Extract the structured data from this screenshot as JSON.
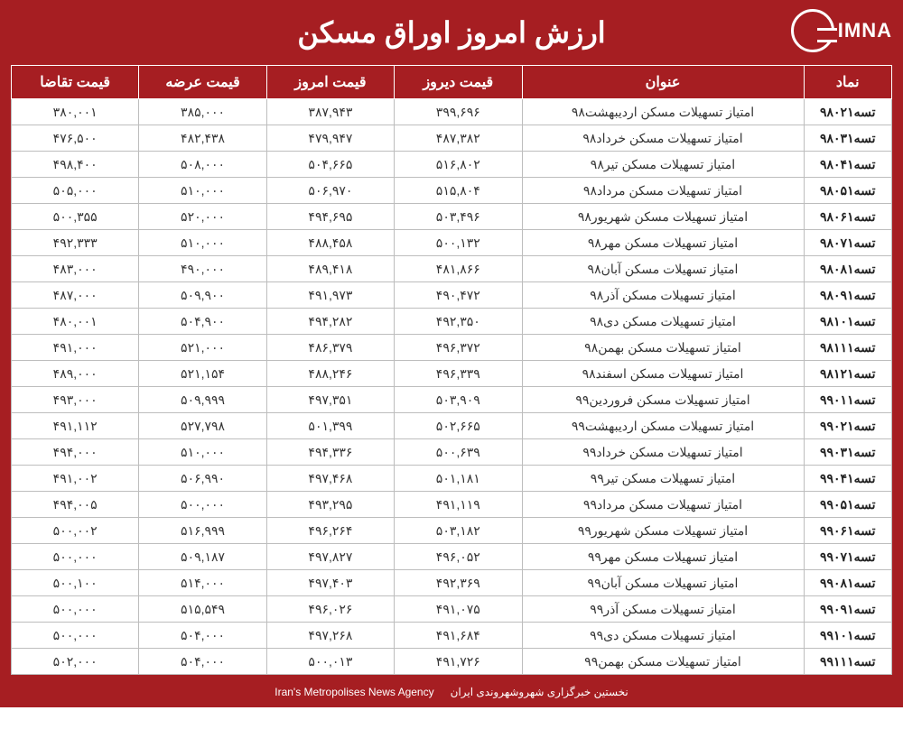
{
  "brand": {
    "name": "IMNA"
  },
  "title": "ارزش امروز اوراق مسکن",
  "footer": {
    "fa": "نخستین خبرگزاری شهروشهروندی ایران",
    "en": "Iran's Metropolises News Agency"
  },
  "table": {
    "type": "table",
    "background_color": "#ffffff",
    "header_bg": "#a61e22",
    "header_fg": "#ffffff",
    "border_color": "#bdbdbd",
    "font_family": "Tahoma",
    "header_fontsize": 16,
    "body_fontsize": 14,
    "columns": [
      {
        "key": "symbol",
        "label": "نماد",
        "width_pct": 10,
        "align": "center",
        "bold": true
      },
      {
        "key": "title",
        "label": "عنوان",
        "width_pct": 32,
        "align": "center"
      },
      {
        "key": "yesterday",
        "label": "قیمت دیروز",
        "width_pct": 14.5,
        "align": "center"
      },
      {
        "key": "today",
        "label": "قیمت امروز",
        "width_pct": 14.5,
        "align": "center"
      },
      {
        "key": "offer",
        "label": "قیمت عرضه",
        "width_pct": 14.5,
        "align": "center"
      },
      {
        "key": "demand",
        "label": "قیمت تقاضا",
        "width_pct": 14.5,
        "align": "center"
      }
    ],
    "rows": [
      {
        "symbol": "تسه۹۸۰۲۱",
        "title": "امتیاز تسهیلات مسکن اردیبهشت۹۸",
        "yesterday": "۳۹۹,۶۹۶",
        "today": "۳۸۷,۹۴۳",
        "offer": "۳۸۵,۰۰۰",
        "demand": "۳۸۰,۰۰۱"
      },
      {
        "symbol": "تسه۹۸۰۳۱",
        "title": "امتیاز تسهیلات مسکن خرداد۹۸",
        "yesterday": "۴۸۷,۳۸۲",
        "today": "۴۷۹,۹۴۷",
        "offer": "۴۸۲,۴۳۸",
        "demand": "۴۷۶,۵۰۰"
      },
      {
        "symbol": "تسه۹۸۰۴۱",
        "title": "امتیاز تسهیلات مسکن تیر۹۸",
        "yesterday": "۵۱۶,۸۰۲",
        "today": "۵۰۴,۶۶۵",
        "offer": "۵۰۸,۰۰۰",
        "demand": "۴۹۸,۴۰۰"
      },
      {
        "symbol": "تسه۹۸۰۵۱",
        "title": "امتیاز تسهیلات مسکن مرداد۹۸",
        "yesterday": "۵۱۵,۸۰۴",
        "today": "۵۰۶,۹۷۰",
        "offer": "۵۱۰,۰۰۰",
        "demand": "۵۰۵,۰۰۰"
      },
      {
        "symbol": "تسه۹۸۰۶۱",
        "title": "امتیاز تسهیلات مسکن شهریور۹۸",
        "yesterday": "۵۰۳,۴۹۶",
        "today": "۴۹۴,۶۹۵",
        "offer": "۵۲۰,۰۰۰",
        "demand": "۵۰۰,۳۵۵"
      },
      {
        "symbol": "تسه۹۸۰۷۱",
        "title": "امتیاز تسهیلات مسکن مهر۹۸",
        "yesterday": "۵۰۰,۱۳۲",
        "today": "۴۸۸,۴۵۸",
        "offer": "۵۱۰,۰۰۰",
        "demand": "۴۹۲,۳۳۳"
      },
      {
        "symbol": "تسه۹۸۰۸۱",
        "title": "امتیاز تسهیلات مسکن آبان۹۸",
        "yesterday": "۴۸۱,۸۶۶",
        "today": "۴۸۹,۴۱۸",
        "offer": "۴۹۰,۰۰۰",
        "demand": "۴۸۳,۰۰۰"
      },
      {
        "symbol": "تسه۹۸۰۹۱",
        "title": "امتیاز تسهیلات مسکن آذر۹۸",
        "yesterday": "۴۹۰,۴۷۲",
        "today": "۴۹۱,۹۷۳",
        "offer": "۵۰۹,۹۰۰",
        "demand": "۴۸۷,۰۰۰"
      },
      {
        "symbol": "تسه۹۸۱۰۱",
        "title": "امتیاز تسهیلات مسکن دی۹۸",
        "yesterday": "۴۹۲,۳۵۰",
        "today": "۴۹۴,۲۸۲",
        "offer": "۵۰۴,۹۰۰",
        "demand": "۴۸۰,۰۰۱"
      },
      {
        "symbol": "تسه۹۸۱۱۱",
        "title": "امتیاز تسهیلات مسکن بهمن۹۸",
        "yesterday": "۴۹۶,۳۷۲",
        "today": "۴۸۶,۳۷۹",
        "offer": "۵۲۱,۰۰۰",
        "demand": "۴۹۱,۰۰۰"
      },
      {
        "symbol": "تسه۹۸۱۲۱",
        "title": "امتیاز تسهیلات مسکن اسفند۹۸",
        "yesterday": "۴۹۶,۳۳۹",
        "today": "۴۸۸,۲۴۶",
        "offer": "۵۲۱,۱۵۴",
        "demand": "۴۸۹,۰۰۰"
      },
      {
        "symbol": "تسه۹۹۰۱۱",
        "title": "امتیاز تسهیلات مسکن فروردین۹۹",
        "yesterday": "۵۰۳,۹۰۹",
        "today": "۴۹۷,۳۵۱",
        "offer": "۵۰۹,۹۹۹",
        "demand": "۴۹۳,۰۰۰"
      },
      {
        "symbol": "تسه۹۹۰۲۱",
        "title": "امتیاز تسهیلات مسکن اردیبهشت۹۹",
        "yesterday": "۵۰۲,۶۶۵",
        "today": "۵۰۱,۳۹۹",
        "offer": "۵۲۷,۷۹۸",
        "demand": "۴۹۱,۱۱۲"
      },
      {
        "symbol": "تسه۹۹۰۳۱",
        "title": "امتیاز تسهیلات مسکن خرداد۹۹",
        "yesterday": "۵۰۰,۶۳۹",
        "today": "۴۹۴,۳۳۶",
        "offer": "۵۱۰,۰۰۰",
        "demand": "۴۹۴,۰۰۰"
      },
      {
        "symbol": "تسه۹۹۰۴۱",
        "title": "امتیاز تسهیلات مسکن تیر۹۹",
        "yesterday": "۵۰۱,۱۸۱",
        "today": "۴۹۷,۴۶۸",
        "offer": "۵۰۶,۹۹۰",
        "demand": "۴۹۱,۰۰۲"
      },
      {
        "symbol": "تسه۹۹۰۵۱",
        "title": "امتیاز تسهیلات مسکن مرداد۹۹",
        "yesterday": "۴۹۱,۱۱۹",
        "today": "۴۹۳,۲۹۵",
        "offer": "۵۰۰,۰۰۰",
        "demand": "۴۹۴,۰۰۵"
      },
      {
        "symbol": "تسه۹۹۰۶۱",
        "title": "امتیاز تسهیلات مسکن شهریور۹۹",
        "yesterday": "۵۰۳,۱۸۲",
        "today": "۴۹۶,۲۶۴",
        "offer": "۵۱۶,۹۹۹",
        "demand": "۵۰۰,۰۰۲"
      },
      {
        "symbol": "تسه۹۹۰۷۱",
        "title": "امتیاز تسهیلات مسکن مهر۹۹",
        "yesterday": "۴۹۶,۰۵۲",
        "today": "۴۹۷,۸۲۷",
        "offer": "۵۰۹,۱۸۷",
        "demand": "۵۰۰,۰۰۰"
      },
      {
        "symbol": "تسه۹۹۰۸۱",
        "title": "امتیاز تسهیلات مسکن آبان۹۹",
        "yesterday": "۴۹۲,۳۶۹",
        "today": "۴۹۷,۴۰۳",
        "offer": "۵۱۴,۰۰۰",
        "demand": "۵۰۰,۱۰۰"
      },
      {
        "symbol": "تسه۹۹۰۹۱",
        "title": "امتیاز تسهیلات مسکن آذر۹۹",
        "yesterday": "۴۹۱,۰۷۵",
        "today": "۴۹۶,۰۲۶",
        "offer": "۵۱۵,۵۴۹",
        "demand": "۵۰۰,۰۰۰"
      },
      {
        "symbol": "تسه۹۹۱۰۱",
        "title": "امتیاز تسهیلات مسکن دی۹۹",
        "yesterday": "۴۹۱,۶۸۴",
        "today": "۴۹۷,۲۶۸",
        "offer": "۵۰۴,۰۰۰",
        "demand": "۵۰۰,۰۰۰"
      },
      {
        "symbol": "تسه۹۹۱۱۱",
        "title": "امتیاز تسهیلات مسکن بهمن۹۹",
        "yesterday": "۴۹۱,۷۲۶",
        "today": "۵۰۰,۰۱۳",
        "offer": "۵۰۴,۰۰۰",
        "demand": "۵۰۲,۰۰۰"
      }
    ]
  }
}
